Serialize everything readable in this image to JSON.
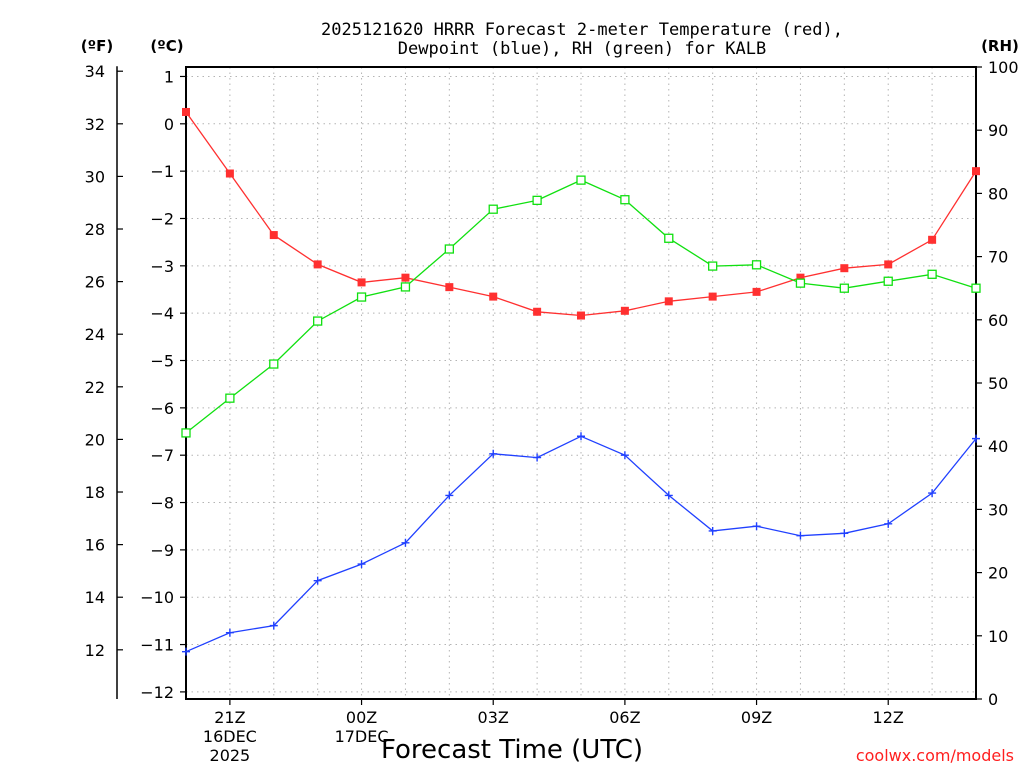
{
  "chart_data": {
    "type": "line",
    "title_line1": "2025121620 HRRR Forecast 2-meter Temperature (red),",
    "title_line2": "Dewpoint (blue), RH (green) for KALB",
    "unit_labels": {
      "fahrenheit": "(ºF)",
      "celsius": "(ºC)",
      "rh": "(RH)"
    },
    "xlabel": "Forecast Time (UTC)",
    "credit": "coolwx.com/models",
    "x_hours": [
      20,
      21,
      22,
      23,
      24,
      25,
      26,
      27,
      28,
      29,
      30,
      31,
      32,
      33,
      34,
      35,
      36,
      37,
      38
    ],
    "x_ticks": [
      {
        "hour": 21,
        "lines": [
          "21Z",
          "16DEC",
          "2025"
        ]
      },
      {
        "hour": 24,
        "lines": [
          "00Z",
          "17DEC"
        ]
      },
      {
        "hour": 27,
        "lines": [
          "03Z"
        ]
      },
      {
        "hour": 30,
        "lines": [
          "06Z"
        ]
      },
      {
        "hour": 33,
        "lines": [
          "09Z"
        ]
      },
      {
        "hour": 36,
        "lines": [
          "12Z"
        ]
      }
    ],
    "x_range": [
      20,
      38
    ],
    "celsius_range": [
      -12.15,
      1.2
    ],
    "celsius_ticks": [
      "1",
      "0",
      "−1",
      "−2",
      "−3",
      "−4",
      "−5",
      "−6",
      "−7",
      "−8",
      "−9",
      "−10",
      "−11",
      "−12"
    ],
    "fahrenheit_ticks": [
      "34",
      "32",
      "30",
      "28",
      "26",
      "24",
      "22",
      "20",
      "18",
      "16",
      "14",
      "12"
    ],
    "rh_range": [
      0,
      100
    ],
    "rh_ticks": [
      "100",
      "90",
      "80",
      "70",
      "60",
      "50",
      "40",
      "30",
      "20",
      "10",
      "0"
    ],
    "grid": true,
    "series": [
      {
        "name": "Temperature",
        "color": "#ff3030",
        "marker": "filled-square",
        "values": [
          0.25,
          -1.05,
          -2.35,
          -2.97,
          -3.35,
          -3.25,
          -3.45,
          -3.65,
          -3.97,
          -4.05,
          -3.95,
          -3.75,
          -3.65,
          -3.55,
          -3.25,
          -3.05,
          -2.97,
          -2.45,
          -1.0
        ]
      },
      {
        "name": "Dewpoint",
        "color": "#2040ff",
        "marker": "plus",
        "values": [
          -11.15,
          -10.75,
          -10.6,
          -9.65,
          -9.3,
          -8.85,
          -7.85,
          -6.97,
          -7.05,
          -6.6,
          -7.0,
          -7.85,
          -8.6,
          -8.5,
          -8.7,
          -8.65,
          -8.45,
          -7.8,
          -6.65
        ]
      },
      {
        "name": "RH",
        "color": "#10e010",
        "marker": "open-square",
        "values": [
          42.1,
          47.6,
          53.0,
          59.8,
          63.6,
          65.2,
          71.2,
          77.5,
          78.9,
          82.1,
          79.0,
          72.9,
          68.5,
          68.7,
          65.8,
          65.0,
          66.1,
          67.2,
          65.0
        ]
      }
    ]
  }
}
